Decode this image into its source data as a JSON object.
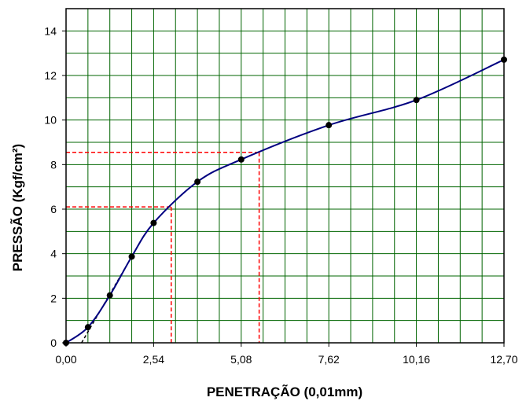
{
  "chart_data": {
    "type": "line",
    "xlabel": "PENETRAÇÃO (0,01mm)",
    "ylabel": "PRESSÃO (Kgf/cm²)",
    "xlim": [
      0,
      12.7
    ],
    "ylim": [
      0,
      15
    ],
    "x_ticks": [
      0,
      2.54,
      5.08,
      7.62,
      10.16,
      12.7
    ],
    "x_tick_labels": [
      "0,00",
      "2,54",
      "5,08",
      "7,62",
      "10,16",
      "12,70"
    ],
    "y_ticks": [
      0,
      2,
      4,
      6,
      8,
      10,
      12,
      14
    ],
    "y_tick_labels": [
      "0",
      "2",
      "4",
      "6",
      "8",
      "10",
      "12",
      "14"
    ],
    "x_minor_step": 0.635,
    "y_minor_step": 1,
    "grid": true,
    "series": [
      {
        "values_x": [
          0,
          0.635,
          1.27,
          1.905,
          2.54,
          3.81,
          5.08,
          7.62,
          10.16,
          12.7
        ],
        "values_y": [
          0,
          0.7,
          2.13,
          3.87,
          5.38,
          7.23,
          8.23,
          9.77,
          10.9,
          12.71
        ],
        "color": "#000080"
      }
    ],
    "correction_line": {
      "x": [
        0.45,
        1.905
      ],
      "y": [
        0,
        3.87
      ],
      "color": "#000000",
      "style": "dashed"
    },
    "reference_lines": [
      {
        "x": 3.05,
        "y": 6.1,
        "color": "#ff0000"
      },
      {
        "x": 5.6,
        "y": 8.55,
        "color": "#ff0000"
      }
    ]
  }
}
